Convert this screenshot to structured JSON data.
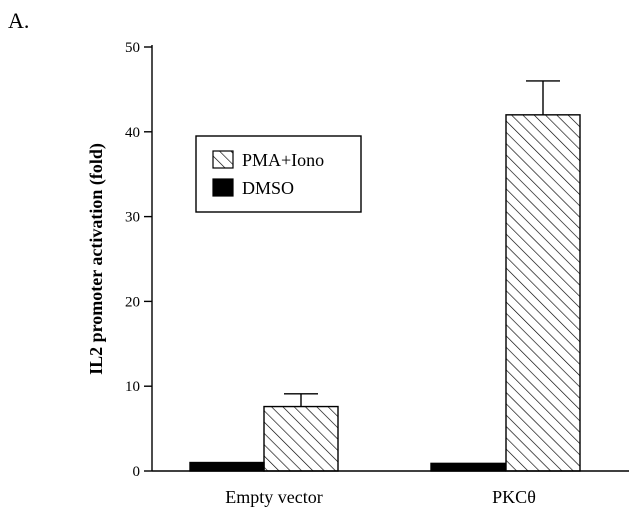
{
  "panel_label": "A.",
  "chart_data": {
    "type": "bar",
    "categories": [
      "Empty vector",
      "PKCθ"
    ],
    "series": [
      {
        "name": "DMSO",
        "values": [
          1.0,
          0.9
        ],
        "errors": [
          0,
          0
        ],
        "pattern": "solid",
        "color": "#000000"
      },
      {
        "name": "PMA+Iono",
        "values": [
          7.6,
          42.0
        ],
        "errors": [
          1.5,
          4.0
        ],
        "pattern": "hatch",
        "color": "#000000"
      }
    ],
    "ylabel": "IL2 promoter activation (fold)",
    "xlabel": "",
    "ylim": [
      0,
      50
    ],
    "yticks": [
      0,
      10,
      20,
      30,
      40,
      50
    ],
    "legend": {
      "placement": "upper-left",
      "order": [
        "PMA+Iono",
        "DMSO"
      ]
    },
    "grid": false
  }
}
